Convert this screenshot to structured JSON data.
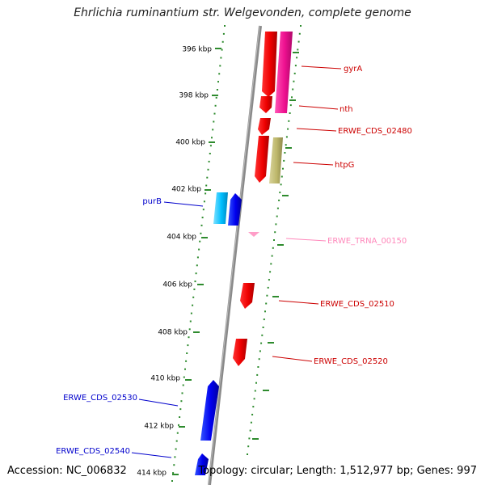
{
  "title": "Ehrlichia ruminantium str. Welgevonden, complete genome",
  "footer": {
    "accession": "Accession: NC_006832",
    "summary": "Topology: circular; Length: 1,512,977 bp; Genes: 997"
  },
  "ruler": {
    "ticks": [
      "396 kbp",
      "398 kbp",
      "400 kbp",
      "402 kbp",
      "404 kbp",
      "406 kbp",
      "408 kbp",
      "410 kbp",
      "412 kbp",
      "414 kbp"
    ]
  },
  "gene_labels": {
    "gyrA": "gyrA",
    "nth": "nth",
    "erwe_cds_02480": "ERWE_CDS_02480",
    "htpG": "htpG",
    "purB": "purB",
    "erwe_trna_00150": "ERWE_TRNA_00150",
    "erwe_cds_02510": "ERWE_CDS_02510",
    "erwe_cds_02520": "ERWE_CDS_02520",
    "erwe_cds_02530": "ERWE_CDS_02530",
    "erwe_cds_02540": "ERWE_CDS_02540"
  },
  "colors": {
    "backbone": "#8a8a8a",
    "track_dots": "#2e8b2e",
    "forward_cds": "#ff0000",
    "reverse_cds": "#0000ff",
    "gyrA": "#ff1493",
    "htpG": "#bdb76b",
    "purB": "#00bfff",
    "trna": "#ff9ec8",
    "label_forward": "#cc0000",
    "label_reverse": "#0000cc",
    "label_trna": "#ff88bb"
  }
}
